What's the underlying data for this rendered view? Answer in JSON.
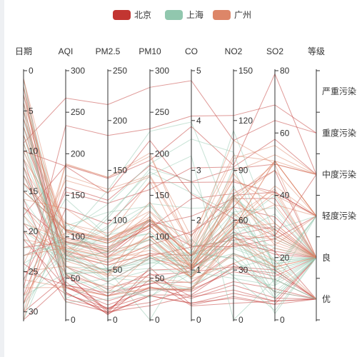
{
  "chart_data": {
    "type": "parallel",
    "title": "",
    "legend": {
      "placement": "top-center",
      "items": [
        {
          "name": "北京",
          "color": "#c23531"
        },
        {
          "name": "上海",
          "color": "#91c7ae"
        },
        {
          "name": "广州",
          "color": "#dd8668"
        }
      ]
    },
    "axes": [
      {
        "name": "日期",
        "type": "value",
        "min": 0,
        "max": 31,
        "inverse": true,
        "ticks": [
          0,
          5,
          10,
          15,
          20,
          25,
          30
        ]
      },
      {
        "name": "AQI",
        "type": "value",
        "min": 0,
        "max": 300,
        "ticks": [
          0,
          50,
          100,
          150,
          200,
          250,
          300
        ]
      },
      {
        "name": "PM2.5",
        "type": "value",
        "min": 0,
        "max": 250,
        "ticks": [
          0,
          50,
          100,
          150,
          200,
          250
        ]
      },
      {
        "name": "PM10",
        "type": "value",
        "min": 0,
        "max": 300,
        "ticks": [
          0,
          50,
          100,
          150,
          200,
          250,
          300
        ]
      },
      {
        "name": "CO",
        "type": "value",
        "min": 0,
        "max": 5,
        "ticks": [
          0,
          1,
          2,
          3,
          4,
          5
        ]
      },
      {
        "name": "NO2",
        "type": "value",
        "min": 0,
        "max": 150,
        "ticks": [
          0,
          30,
          60,
          90,
          120,
          150
        ]
      },
      {
        "name": "SO2",
        "type": "value",
        "min": 0,
        "max": 80,
        "ticks": [
          0,
          20,
          40,
          60,
          80
        ]
      },
      {
        "name": "等级",
        "type": "category",
        "categories": [
          "优",
          "良",
          "轻度污染",
          "中度污染",
          "重度污染",
          "严重污染"
        ]
      }
    ],
    "series": [
      {
        "name": "北京",
        "color": "#c23531",
        "data": [
          [
            1,
            55,
            9,
            56,
            0.46,
            18,
            6,
            "良"
          ],
          [
            2,
            25,
            11,
            21,
            0.65,
            34,
            9,
            "优"
          ],
          [
            3,
            56,
            7,
            63,
            0.3,
            14,
            5,
            "良"
          ],
          [
            4,
            33,
            7,
            29,
            0.33,
            16,
            6,
            "优"
          ],
          [
            5,
            42,
            24,
            44,
            0.76,
            40,
            16,
            "优"
          ],
          [
            6,
            82,
            58,
            90,
            1.77,
            68,
            33,
            "良"
          ],
          [
            7,
            74,
            49,
            77,
            1.46,
            48,
            27,
            "良"
          ],
          [
            8,
            78,
            55,
            80,
            1.29,
            59,
            29,
            "良"
          ],
          [
            9,
            267,
            216,
            280,
            4.8,
            108,
            64,
            "重度污染"
          ],
          [
            10,
            185,
            127,
            216,
            2.52,
            61,
            27,
            "中度污染"
          ],
          [
            11,
            39,
            19,
            38,
            0.57,
            31,
            15,
            "优"
          ],
          [
            12,
            41,
            11,
            40,
            0.43,
            21,
            7,
            "优"
          ],
          [
            13,
            64,
            38,
            74,
            1.04,
            46,
            22,
            "良"
          ],
          [
            14,
            108,
            79,
            120,
            1.7,
            75,
            41,
            "轻度污染"
          ],
          [
            15,
            108,
            63,
            116,
            1.48,
            44,
            26,
            "轻度污染"
          ],
          [
            16,
            33,
            6,
            29,
            0.34,
            13,
            5,
            "优"
          ],
          [
            17,
            94,
            66,
            119,
            1.29,
            51,
            30,
            "良"
          ],
          [
            18,
            186,
            142,
            192,
            3.88,
            93,
            79,
            "中度污染"
          ],
          [
            19,
            57,
            31,
            54,
            0.96,
            32,
            14,
            "良"
          ],
          [
            20,
            22,
            8,
            17,
            0.48,
            23,
            10,
            "优"
          ],
          [
            21,
            39,
            15,
            36,
            0.61,
            29,
            13,
            "优"
          ],
          [
            22,
            94,
            69,
            114,
            2.08,
            73,
            39,
            "良"
          ],
          [
            23,
            99,
            73,
            110,
            2.43,
            76,
            48,
            "良"
          ],
          [
            24,
            31,
            12,
            30,
            0.5,
            32,
            16,
            "优"
          ],
          [
            25,
            42,
            27,
            43,
            1,
            53,
            22,
            "优"
          ],
          [
            26,
            154,
            117,
            157,
            3.05,
            92,
            58,
            "中度污染"
          ],
          [
            27,
            234,
            185,
            230,
            4.09,
            123,
            69,
            "重度污染"
          ],
          [
            28,
            160,
            120,
            186,
            2.77,
            91,
            50,
            "中度污染"
          ],
          [
            29,
            134,
            96,
            165,
            2.76,
            83,
            41,
            "轻度污染"
          ],
          [
            30,
            52,
            24,
            60,
            1.03,
            50,
            21,
            "良"
          ],
          [
            31,
            46,
            5,
            49,
            0.28,
            10,
            6,
            "优"
          ]
        ]
      },
      {
        "name": "上海",
        "color": "#91c7ae",
        "data": [
          [
            1,
            26,
            37,
            27,
            1.163,
            27,
            13,
            "优"
          ],
          [
            2,
            85,
            62,
            71,
            1.195,
            60,
            8,
            "良"
          ],
          [
            3,
            78,
            38,
            74,
            1.363,
            37,
            7,
            "良"
          ],
          [
            4,
            21,
            21,
            36,
            0.634,
            40,
            9,
            "优"
          ],
          [
            5,
            41,
            42,
            46,
            0.915,
            81,
            13,
            "优"
          ],
          [
            6,
            56,
            52,
            69,
            1.067,
            92,
            16,
            "良"
          ],
          [
            7,
            64,
            30,
            28,
            0.924,
            51,
            2,
            "良"
          ],
          [
            8,
            55,
            48,
            74,
            1.236,
            75,
            26,
            "良"
          ],
          [
            9,
            76,
            85,
            113,
            1.237,
            114,
            27,
            "良"
          ],
          [
            10,
            91,
            81,
            104,
            1.041,
            56,
            40,
            "良"
          ],
          [
            11,
            84,
            39,
            60,
            0.964,
            25,
            11,
            "良"
          ],
          [
            12,
            64,
            51,
            101,
            0.862,
            58,
            23,
            "良"
          ],
          [
            13,
            70,
            69,
            120,
            1.198,
            65,
            36,
            "良"
          ],
          [
            14,
            77,
            105,
            178,
            2.549,
            64,
            16,
            "良"
          ],
          [
            15,
            109,
            68,
            87,
            0.996,
            74,
            29,
            "轻度污染"
          ],
          [
            16,
            73,
            68,
            97,
            0.905,
            51,
            34,
            "良"
          ],
          [
            17,
            54,
            27,
            47,
            0.592,
            53,
            12,
            "良"
          ],
          [
            18,
            51,
            61,
            97,
            0.811,
            65,
            19,
            "良"
          ],
          [
            19,
            91,
            71,
            121,
            1.374,
            43,
            18,
            "良"
          ],
          [
            20,
            73,
            102,
            182,
            2.787,
            44,
            19,
            "良"
          ],
          [
            21,
            73,
            50,
            76,
            0.717,
            31,
            20,
            "良"
          ],
          [
            22,
            84,
            94,
            140,
            2.238,
            68,
            18,
            "良"
          ],
          [
            23,
            93,
            77,
            104,
            1.165,
            53,
            7,
            "良"
          ],
          [
            24,
            99,
            130,
            227,
            3.97,
            55,
            15,
            "良"
          ],
          [
            25,
            146,
            84,
            139,
            1.094,
            40,
            17,
            "轻度污染"
          ],
          [
            26,
            113,
            108,
            137,
            1.481,
            48,
            15,
            "轻度污染"
          ],
          [
            27,
            81,
            48,
            62,
            1.619,
            26,
            3,
            "良"
          ],
          [
            28,
            56,
            48,
            68,
            1.336,
            37,
            9,
            "良"
          ],
          [
            29,
            82,
            92,
            174,
            3.29,
            0,
            13,
            "良"
          ],
          [
            30,
            106,
            116,
            188,
            3.628,
            101,
            16,
            "轻度污染"
          ],
          [
            31,
            118,
            50,
            0,
            1.383,
            76,
            11,
            "轻度污染"
          ]
        ]
      },
      {
        "name": "广州",
        "color": "#dd8668",
        "data": [
          [
            1,
            91,
            45,
            125,
            0.82,
            34,
            23,
            "良"
          ],
          [
            2,
            65,
            27,
            78,
            0.86,
            45,
            29,
            "良"
          ],
          [
            3,
            83,
            60,
            84,
            1.09,
            73,
            27,
            "良"
          ],
          [
            4,
            109,
            81,
            121,
            1.28,
            68,
            51,
            "轻度污染"
          ],
          [
            5,
            106,
            77,
            114,
            1.07,
            55,
            51,
            "轻度污染"
          ],
          [
            6,
            109,
            81,
            121,
            1.28,
            68,
            51,
            "轻度污染"
          ],
          [
            7,
            106,
            77,
            114,
            1.07,
            55,
            51,
            "轻度污染"
          ],
          [
            8,
            89,
            65,
            78,
            0.86,
            51,
            26,
            "良"
          ],
          [
            9,
            53,
            33,
            47,
            0.64,
            50,
            17,
            "良"
          ],
          [
            10,
            80,
            55,
            80,
            1.01,
            75,
            24,
            "良"
          ],
          [
            11,
            117,
            81,
            124,
            1.03,
            45,
            24,
            "轻度污染"
          ],
          [
            12,
            99,
            71,
            142,
            1.1,
            62,
            42,
            "良"
          ],
          [
            13,
            95,
            69,
            130,
            1.28,
            74,
            50,
            "良"
          ],
          [
            14,
            116,
            87,
            131,
            1.47,
            84,
            40,
            "轻度污染"
          ],
          [
            15,
            108,
            80,
            121,
            1.3,
            85,
            37,
            "轻度污染"
          ],
          [
            16,
            134,
            83,
            167,
            1.16,
            57,
            43,
            "轻度污染"
          ],
          [
            17,
            79,
            43,
            107,
            1.05,
            59,
            37,
            "良"
          ],
          [
            18,
            71,
            46,
            89,
            0.86,
            64,
            25,
            "良"
          ],
          [
            19,
            97,
            71,
            113,
            1.17,
            88,
            31,
            "良"
          ],
          [
            20,
            84,
            57,
            91,
            0.85,
            55,
            31,
            "良"
          ],
          [
            21,
            87,
            63,
            101,
            0.9,
            56,
            41,
            "良"
          ],
          [
            22,
            104,
            77,
            119,
            1.09,
            73,
            48,
            "轻度污染"
          ],
          [
            23,
            87,
            62,
            100,
            1,
            72,
            28,
            "良"
          ],
          [
            24,
            168,
            128,
            172,
            1.49,
            97,
            56,
            "中度污染"
          ],
          [
            25,
            65,
            45,
            51,
            0.74,
            39,
            17,
            "良"
          ],
          [
            26,
            39,
            24,
            38,
            0.61,
            47,
            17,
            "优"
          ],
          [
            27,
            39,
            24,
            39,
            0.59,
            50,
            19,
            "优"
          ],
          [
            28,
            93,
            68,
            96,
            1.05,
            79,
            29,
            "良"
          ],
          [
            29,
            188,
            143,
            197,
            1.66,
            99,
            51,
            "中度污染"
          ],
          [
            30,
            174,
            131,
            174,
            1.55,
            108,
            50,
            "中度污染"
          ],
          [
            31,
            187,
            143,
            201,
            1.39,
            89,
            53,
            "中度污染"
          ]
        ]
      }
    ]
  }
}
